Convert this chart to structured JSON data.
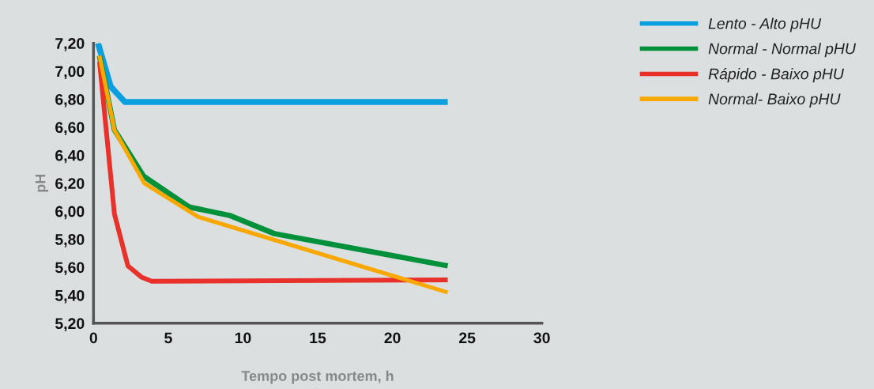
{
  "chart_data": {
    "type": "line",
    "xlabel": "Tempo post mortem, h",
    "ylabel": "pH",
    "xlim": [
      0,
      30
    ],
    "xticks": [
      0,
      5,
      10,
      15,
      20,
      25,
      30
    ],
    "ylim": [
      5.2,
      7.2
    ],
    "yticks": [
      {
        "value": 5.2,
        "label": "5,20"
      },
      {
        "value": 5.4,
        "label": "5,40"
      },
      {
        "value": 5.6,
        "label": "5,60"
      },
      {
        "value": 5.8,
        "label": "5,80"
      },
      {
        "value": 6.0,
        "label": "6,00"
      },
      {
        "value": 6.2,
        "label": "6,20"
      },
      {
        "value": 6.4,
        "label": "6,40"
      },
      {
        "value": 6.6,
        "label": "6,60"
      },
      {
        "value": 6.8,
        "label": "6,80"
      },
      {
        "value": 7.0,
        "label": "7,00"
      },
      {
        "value": 7.2,
        "label": "7,20"
      }
    ],
    "grid": false,
    "legend": "top right",
    "marker": "none",
    "line_style": "solid",
    "series": [
      {
        "name": "Lento - Alto pHU",
        "color": "#0aa0e0",
        "x": [
          0.3,
          1.15,
          2.1,
          23.7
        ],
        "values": [
          7.2,
          6.89,
          6.78,
          6.78
        ]
      },
      {
        "name": "Normal - Normal pHU",
        "color": "#00913a",
        "x": [
          0.4,
          1.4,
          3.35,
          6.4,
          9.1,
          12.1,
          23.7
        ],
        "values": [
          7.11,
          6.58,
          6.25,
          6.03,
          5.97,
          5.84,
          5.61
        ]
      },
      {
        "name": "Rápido - Baixo pHU",
        "color": "#e8312a",
        "x": [
          0.4,
          1.4,
          2.3,
          3.2,
          3.9,
          23.7
        ],
        "values": [
          7.07,
          5.98,
          5.61,
          5.53,
          5.5,
          5.51
        ]
      },
      {
        "name": "Normal- Baixo pHU",
        "color": "#f8a800",
        "x": [
          0.4,
          1.4,
          3.4,
          7.0,
          23.7
        ],
        "values": [
          7.11,
          6.58,
          6.2,
          5.96,
          5.42
        ]
      }
    ]
  }
}
